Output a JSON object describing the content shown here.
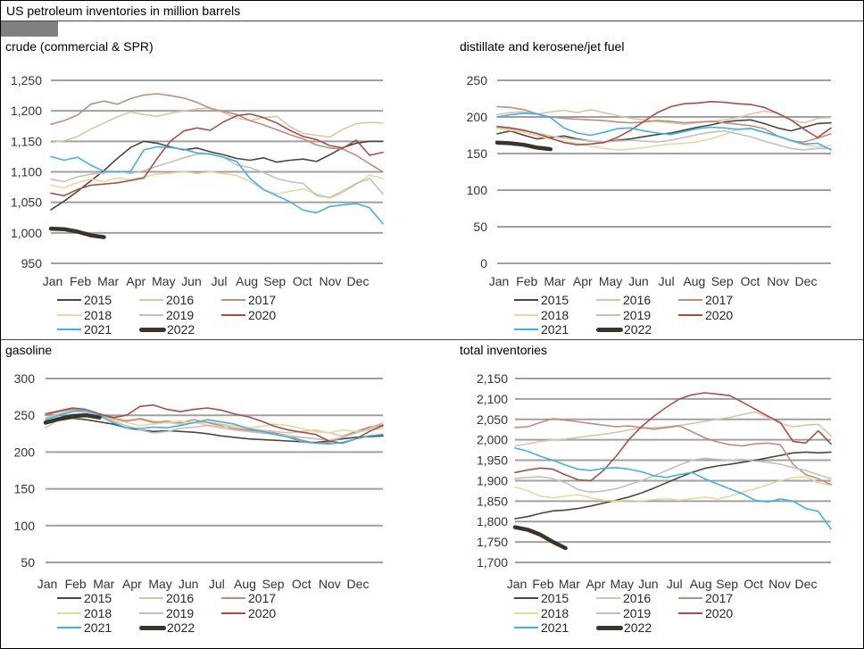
{
  "header": {
    "title": "US petroleum inventories in million barrels"
  },
  "colors": {
    "grid": "#a0a0a0",
    "redaction": "#808080",
    "tick_text": "#333333"
  },
  "chart_data": [
    {
      "type": "line",
      "title": "crude (commercial & SPR)",
      "months": [
        "Jan",
        "Feb",
        "Mar",
        "Apr",
        "May",
        "Jun",
        "Jul",
        "Aug",
        "Sep",
        "Oct",
        "Nov",
        "Dec"
      ],
      "ylim": [
        950,
        1250
      ],
      "ytick_step": 50,
      "yticks": [
        "1,250",
        "1,200",
        "1,150",
        "1,100",
        "1,050",
        "1,000",
        "950"
      ],
      "legend_position": "bottom",
      "grid": true,
      "series": [
        {
          "name": "2015",
          "color": "#4e443c",
          "thick": false,
          "values": [
            1038,
            1052,
            1068,
            1085,
            1102,
            1122,
            1140,
            1150,
            1147,
            1141,
            1136,
            1139,
            1133,
            1128,
            1122,
            1119,
            1123,
            1116,
            1119,
            1121,
            1117,
            1128,
            1140,
            1147,
            1150,
            1150
          ]
        },
        {
          "name": "2016",
          "color": "#d8c7a5",
          "thick": false,
          "values": [
            1148,
            1151,
            1158,
            1170,
            1180,
            1190,
            1198,
            1194,
            1191,
            1196,
            1200,
            1203,
            1205,
            1197,
            1188,
            1184,
            1189,
            1191,
            1174,
            1163,
            1160,
            1157,
            1170,
            1179,
            1181,
            1180
          ]
        },
        {
          "name": "2017",
          "color": "#c48b7c",
          "thick": false,
          "values": [
            1178,
            1184,
            1193,
            1211,
            1216,
            1211,
            1220,
            1226,
            1228,
            1225,
            1221,
            1214,
            1204,
            1199,
            1194,
            1184,
            1177,
            1169,
            1161,
            1154,
            1144,
            1139,
            1137,
            1127,
            1113,
            1100
          ]
        },
        {
          "name": "2018",
          "color": "#ecd69c",
          "thick": false,
          "values": [
            1078,
            1074,
            1082,
            1088,
            1084,
            1090,
            1087,
            1092,
            1096,
            1098,
            1100,
            1097,
            1100,
            1097,
            1094,
            1084,
            1071,
            1064,
            1068,
            1072,
            1064,
            1057,
            1066,
            1080,
            1095,
            1089
          ]
        },
        {
          "name": "2019",
          "color": "#c4c0bc",
          "thick": false,
          "values": [
            1088,
            1084,
            1092,
            1096,
            1098,
            1101,
            1097,
            1102,
            1109,
            1116,
            1123,
            1129,
            1130,
            1124,
            1111,
            1107,
            1099,
            1089,
            1084,
            1081,
            1061,
            1058,
            1069,
            1081,
            1089,
            1064
          ]
        },
        {
          "name": "2020",
          "color": "#a65045",
          "thick": false,
          "values": [
            1065,
            1061,
            1071,
            1078,
            1080,
            1082,
            1086,
            1090,
            1122,
            1150,
            1167,
            1172,
            1168,
            1182,
            1192,
            1195,
            1189,
            1180,
            1168,
            1158,
            1153,
            1143,
            1139,
            1152,
            1127,
            1132
          ]
        },
        {
          "name": "2021",
          "color": "#3fb1e3",
          "thick": false,
          "values": [
            1125,
            1119,
            1124,
            1111,
            1101,
            1100,
            1101,
            1136,
            1141,
            1140,
            1137,
            1131,
            1129,
            1124,
            1117,
            1089,
            1071,
            1061,
            1051,
            1037,
            1033,
            1043,
            1046,
            1048,
            1041,
            1015
          ]
        },
        {
          "name": "2022",
          "color": "#3c332a",
          "thick": true,
          "values": [
            1007,
            1006,
            1002,
            996,
            993
          ]
        }
      ]
    },
    {
      "type": "line",
      "title": "distillate and kerosene/jet fuel",
      "months": [
        "Jan",
        "Feb",
        "Mar",
        "Apr",
        "May",
        "Jun",
        "Jul",
        "Aug",
        "Sep",
        "Oct",
        "Nov",
        "Dec"
      ],
      "ylim": [
        0,
        250
      ],
      "ytick_step": 50,
      "yticks": [
        "250",
        "200",
        "150",
        "100",
        "50",
        "0"
      ],
      "legend_position": "bottom",
      "grid": true,
      "series": [
        {
          "name": "2015",
          "color": "#4e443c",
          "thick": false,
          "values": [
            177,
            181,
            175,
            170,
            172,
            174,
            170,
            167,
            166,
            168,
            170,
            173,
            176,
            178,
            182,
            186,
            189,
            193,
            195,
            196,
            191,
            185,
            181,
            186,
            191,
            192
          ]
        },
        {
          "name": "2016",
          "color": "#d8c7a5",
          "thick": false,
          "values": [
            203,
            206,
            207,
            204,
            207,
            209,
            206,
            210,
            206,
            202,
            198,
            196,
            194,
            192,
            190,
            192,
            194,
            196,
            199,
            204,
            208,
            205,
            196,
            192,
            198,
            199
          ]
        },
        {
          "name": "2017",
          "color": "#c48b7c",
          "thick": false,
          "values": [
            214,
            213,
            210,
            204,
            200,
            198,
            197,
            196,
            195,
            193,
            192,
            193,
            195,
            194,
            192,
            193,
            194,
            192,
            190,
            188,
            184,
            174,
            167,
            166,
            171,
            177
          ]
        },
        {
          "name": "2018",
          "color": "#ecd69c",
          "thick": false,
          "values": [
            184,
            182,
            179,
            174,
            170,
            167,
            164,
            160,
            157,
            155,
            156,
            158,
            161,
            163,
            164,
            166,
            170,
            176,
            183,
            185,
            179,
            173,
            167,
            162,
            159,
            161
          ]
        },
        {
          "name": "2019",
          "color": "#c4c0bc",
          "thick": false,
          "values": [
            186,
            184,
            181,
            178,
            174,
            171,
            169,
            167,
            166,
            167,
            168,
            167,
            166,
            168,
            172,
            176,
            179,
            181,
            177,
            173,
            167,
            162,
            157,
            155,
            157,
            157
          ]
        },
        {
          "name": "2020",
          "color": "#a65045",
          "thick": false,
          "values": [
            187,
            185,
            182,
            177,
            171,
            165,
            162,
            163,
            165,
            172,
            182,
            194,
            206,
            214,
            218,
            219,
            221,
            220,
            218,
            217,
            213,
            205,
            196,
            183,
            172,
            185
          ]
        },
        {
          "name": "2021",
          "color": "#3fb1e3",
          "thick": false,
          "values": [
            200,
            203,
            205,
            204,
            199,
            185,
            178,
            175,
            179,
            184,
            185,
            181,
            178,
            176,
            180,
            184,
            186,
            185,
            183,
            184,
            179,
            174,
            168,
            163,
            164,
            155
          ]
        },
        {
          "name": "2022",
          "color": "#3c332a",
          "thick": true,
          "values": [
            165,
            164,
            162,
            158,
            156
          ]
        }
      ]
    },
    {
      "type": "line",
      "title": "gasoline",
      "months": [
        "Jan",
        "Feb",
        "Mar",
        "Apr",
        "May",
        "Jun",
        "Jul",
        "Aug",
        "Sep",
        "Oct",
        "Nov",
        "Dec"
      ],
      "ylim": [
        50,
        300
      ],
      "ytick_step": 50,
      "yticks": [
        "300",
        "250",
        "200",
        "150",
        "100",
        "50"
      ],
      "legend_position": "bottom",
      "grid": true,
      "series": [
        {
          "name": "2015",
          "color": "#4e443c",
          "thick": false,
          "values": [
            240,
            243,
            246,
            244,
            241,
            238,
            233,
            230,
            228,
            229,
            228,
            227,
            225,
            222,
            220,
            218,
            217,
            216,
            215,
            214,
            213,
            215,
            218,
            220,
            221,
            222
          ]
        },
        {
          "name": "2016",
          "color": "#d8c7a5",
          "thick": false,
          "values": [
            233,
            244,
            250,
            253,
            250,
            246,
            243,
            246,
            242,
            240,
            238,
            240,
            241,
            238,
            235,
            232,
            230,
            228,
            226,
            228,
            230,
            226,
            222,
            228,
            232,
            235
          ]
        },
        {
          "name": "2017",
          "color": "#c48b7c",
          "thick": false,
          "values": [
            250,
            255,
            258,
            256,
            251,
            246,
            242,
            245,
            240,
            242,
            240,
            244,
            240,
            236,
            232,
            230,
            228,
            226,
            222,
            216,
            212,
            213,
            220,
            228,
            234,
            237
          ]
        },
        {
          "name": "2018",
          "color": "#ecd69c",
          "thick": false,
          "values": [
            242,
            246,
            249,
            251,
            248,
            244,
            240,
            236,
            238,
            240,
            242,
            240,
            237,
            234,
            236,
            233,
            235,
            238,
            236,
            232,
            228,
            226,
            230,
            228,
            230,
            232
          ]
        },
        {
          "name": "2019",
          "color": "#c4c0bc",
          "thick": false,
          "values": [
            246,
            252,
            256,
            254,
            248,
            242,
            236,
            230,
            226,
            228,
            232,
            234,
            236,
            233,
            230,
            228,
            226,
            224,
            222,
            220,
            218,
            216,
            220,
            226,
            232,
            240
          ]
        },
        {
          "name": "2020",
          "color": "#a65045",
          "thick": false,
          "values": [
            252,
            256,
            260,
            258,
            252,
            247,
            250,
            262,
            264,
            258,
            255,
            258,
            260,
            257,
            252,
            248,
            242,
            235,
            230,
            227,
            224,
            215,
            212,
            218,
            228,
            236
          ]
        },
        {
          "name": "2021",
          "color": "#3fb1e3",
          "thick": false,
          "values": [
            244,
            250,
            255,
            257,
            250,
            240,
            233,
            232,
            234,
            233,
            236,
            240,
            244,
            241,
            238,
            232,
            228,
            224,
            220,
            214,
            212,
            211,
            213,
            218,
            222,
            224
          ]
        },
        {
          "name": "2022",
          "color": "#3c332a",
          "thick": true,
          "values": [
            240,
            245,
            249,
            250,
            247
          ]
        }
      ]
    },
    {
      "type": "line",
      "title": "total inventories",
      "months": [
        "Jan",
        "Feb",
        "Mar",
        "Apr",
        "May",
        "Jun",
        "Jul",
        "Aug",
        "Sep",
        "Oct",
        "Nov",
        "Dec"
      ],
      "ylim": [
        1700,
        2150
      ],
      "ytick_step": 50,
      "yticks": [
        "2,150",
        "2,100",
        "2,050",
        "2,000",
        "1,950",
        "1,900",
        "1,850",
        "1,800",
        "1,750",
        "1,700"
      ],
      "legend_position": "bottom",
      "grid": true,
      "series": [
        {
          "name": "2015",
          "color": "#4e443c",
          "thick": false,
          "values": [
            1807,
            1812,
            1820,
            1826,
            1828,
            1832,
            1838,
            1845,
            1852,
            1860,
            1870,
            1882,
            1895,
            1908,
            1920,
            1930,
            1936,
            1940,
            1945,
            1950,
            1956,
            1962,
            1968,
            1970,
            1968,
            1970
          ]
        },
        {
          "name": "2016",
          "color": "#d8c7a5",
          "thick": false,
          "values": [
            1985,
            1990,
            1996,
            2000,
            2002,
            2006,
            2010,
            2014,
            2018,
            2024,
            2028,
            2030,
            2032,
            2035,
            2040,
            2045,
            2050,
            2055,
            2062,
            2068,
            2055,
            2040,
            2032,
            2036,
            2038,
            2010
          ]
        },
        {
          "name": "2017",
          "color": "#c48b7c",
          "thick": false,
          "values": [
            2030,
            2032,
            2042,
            2052,
            2048,
            2044,
            2040,
            2036,
            2032,
            2034,
            2030,
            2026,
            2030,
            2034,
            2020,
            2005,
            1995,
            1988,
            1985,
            1990,
            1992,
            1988,
            1940,
            1915,
            1905,
            1890
          ]
        },
        {
          "name": "2018",
          "color": "#ecd69c",
          "thick": false,
          "values": [
            1885,
            1875,
            1862,
            1858,
            1862,
            1866,
            1858,
            1852,
            1850,
            1852,
            1850,
            1854,
            1856,
            1852,
            1856,
            1860,
            1855,
            1862,
            1872,
            1880,
            1890,
            1900,
            1908,
            1910,
            1895,
            1888
          ]
        },
        {
          "name": "2019",
          "color": "#c4c0bc",
          "thick": false,
          "values": [
            1905,
            1908,
            1910,
            1905,
            1895,
            1878,
            1872,
            1875,
            1880,
            1890,
            1900,
            1912,
            1925,
            1938,
            1950,
            1955,
            1952,
            1950,
            1952,
            1948,
            1945,
            1940,
            1932,
            1925,
            1915,
            1905
          ]
        },
        {
          "name": "2020",
          "color": "#a65045",
          "thick": false,
          "values": [
            1920,
            1926,
            1931,
            1928,
            1914,
            1902,
            1900,
            1925,
            1960,
            2000,
            2032,
            2058,
            2080,
            2100,
            2110,
            2115,
            2112,
            2108,
            2092,
            2075,
            2058,
            2042,
            1996,
            1992,
            2022,
            1990
          ]
        },
        {
          "name": "2021",
          "color": "#3fb1e3",
          "thick": false,
          "values": [
            1980,
            1972,
            1960,
            1950,
            1938,
            1928,
            1925,
            1930,
            1932,
            1928,
            1922,
            1912,
            1908,
            1915,
            1920,
            1905,
            1892,
            1880,
            1868,
            1852,
            1848,
            1855,
            1850,
            1832,
            1825,
            1782
          ]
        },
        {
          "name": "2022",
          "color": "#3c332a",
          "thick": true,
          "values": [
            1786,
            1780,
            1768,
            1750,
            1735
          ]
        }
      ]
    }
  ]
}
